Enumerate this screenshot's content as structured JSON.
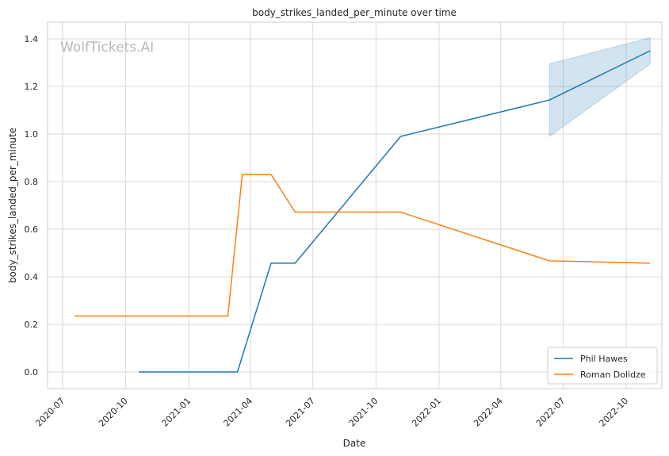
{
  "chart_data": {
    "type": "line",
    "title": "body_strikes_landed_per_minute over time",
    "xlabel": "Date",
    "ylabel": "body_strikes_landed_per_minute",
    "watermark": "WolfTickets.AI",
    "x_type": "date",
    "xlim": [
      "2020-06-09",
      "2022-11-22"
    ],
    "ylim": [
      -0.07,
      1.47
    ],
    "x_ticks": [
      {
        "date": "2020-07-01",
        "label": "2020-07"
      },
      {
        "date": "2020-10-01",
        "label": "2020-10"
      },
      {
        "date": "2021-01-01",
        "label": "2021-01"
      },
      {
        "date": "2021-04-01",
        "label": "2021-04"
      },
      {
        "date": "2021-07-01",
        "label": "2021-07"
      },
      {
        "date": "2021-10-01",
        "label": "2021-10"
      },
      {
        "date": "2022-01-01",
        "label": "2022-01"
      },
      {
        "date": "2022-04-01",
        "label": "2022-04"
      },
      {
        "date": "2022-07-01",
        "label": "2022-07"
      },
      {
        "date": "2022-10-01",
        "label": "2022-10"
      }
    ],
    "y_ticks": [
      {
        "value": 0.0,
        "label": "0.0"
      },
      {
        "value": 0.2,
        "label": "0.2"
      },
      {
        "value": 0.4,
        "label": "0.4"
      },
      {
        "value": 0.6,
        "label": "0.6"
      },
      {
        "value": 0.8,
        "label": "0.8"
      },
      {
        "value": 1.0,
        "label": "1.0"
      },
      {
        "value": 1.2,
        "label": "1.2"
      },
      {
        "value": 1.4,
        "label": "1.4"
      }
    ],
    "grid": true,
    "legend_position": "bottom-right",
    "series": [
      {
        "name": "Phil Hawes",
        "color": "#1f77b4",
        "points": [
          {
            "x": "2020-10-20",
            "y": 0.0
          },
          {
            "x": "2021-03-13",
            "y": 0.0
          },
          {
            "x": "2021-05-01",
            "y": 0.457
          },
          {
            "x": "2021-06-05",
            "y": 0.457
          },
          {
            "x": "2021-11-06",
            "y": 0.99
          },
          {
            "x": "2022-06-11",
            "y": 1.143
          },
          {
            "x": "2022-11-05",
            "y": 1.35
          }
        ],
        "band": {
          "color": "#1f77b4",
          "points": [
            {
              "x": "2022-06-11",
              "low": 0.99,
              "high": 1.295
            },
            {
              "x": "2022-11-05",
              "low": 1.295,
              "high": 1.405
            }
          ]
        }
      },
      {
        "name": "Roman Dolidze",
        "color": "#ff7f0e",
        "points": [
          {
            "x": "2020-07-18",
            "y": 0.235
          },
          {
            "x": "2021-02-27",
            "y": 0.235
          },
          {
            "x": "2021-03-20",
            "y": 0.83
          },
          {
            "x": "2021-05-01",
            "y": 0.83
          },
          {
            "x": "2021-06-05",
            "y": 0.672
          },
          {
            "x": "2021-11-06",
            "y": 0.672
          },
          {
            "x": "2022-06-11",
            "y": 0.467
          },
          {
            "x": "2022-11-05",
            "y": 0.457
          }
        ]
      }
    ]
  }
}
